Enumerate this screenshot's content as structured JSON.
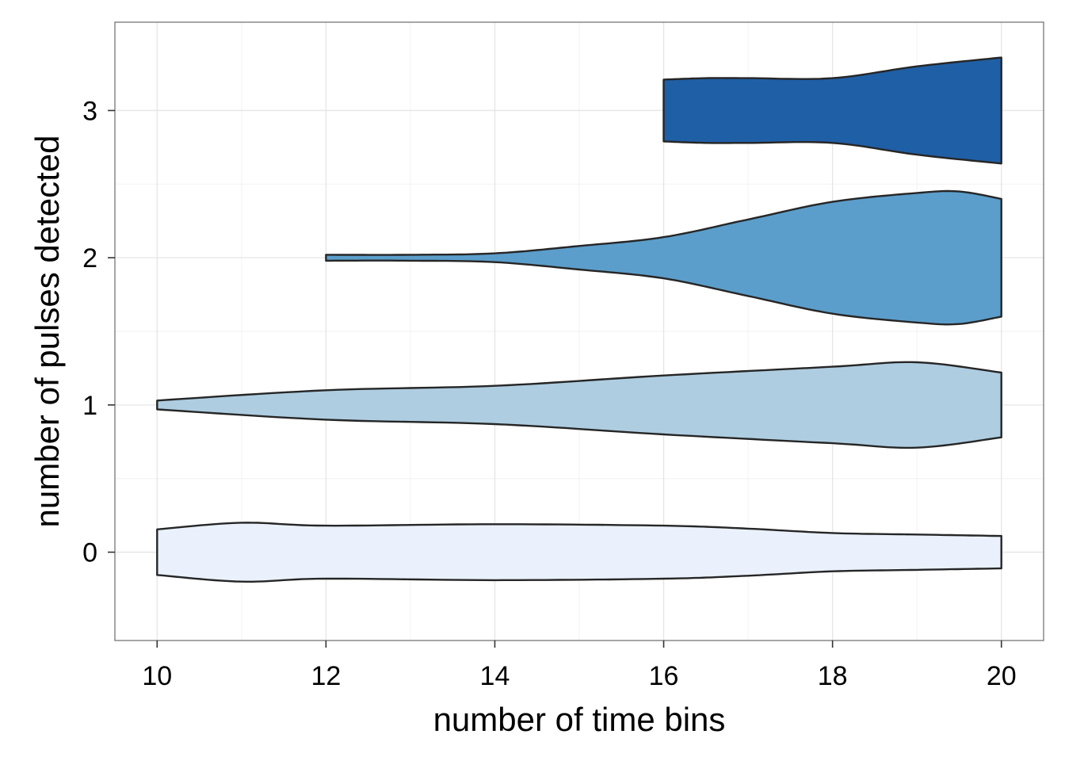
{
  "chart_data": {
    "type": "violin",
    "orientation": "horizontal",
    "xlabel": "number of time bins",
    "ylabel": "number of pulses detected",
    "xlim": [
      9.5,
      20.5
    ],
    "ylim": [
      -0.6,
      3.6
    ],
    "x_ticks": [
      "10",
      "12",
      "14",
      "16",
      "18",
      "20"
    ],
    "y_ticks": [
      "0",
      "1",
      "2",
      "3"
    ],
    "grid": true,
    "series": [
      {
        "category": 0,
        "fill": "#eaf1fc",
        "profile": [
          [
            10,
            0.155
          ],
          [
            11,
            0.2
          ],
          [
            12,
            0.18
          ],
          [
            14,
            0.19
          ],
          [
            16,
            0.18
          ],
          [
            17,
            0.16
          ],
          [
            18,
            0.13
          ],
          [
            19,
            0.12
          ],
          [
            20,
            0.11
          ]
        ]
      },
      {
        "category": 1,
        "fill": "#aecde1",
        "profile": [
          [
            10,
            0.03
          ],
          [
            12,
            0.1
          ],
          [
            14,
            0.13
          ],
          [
            16,
            0.2
          ],
          [
            18,
            0.26
          ],
          [
            19,
            0.29
          ],
          [
            20,
            0.22
          ]
        ]
      },
      {
        "category": 2,
        "fill": "#5b9ecb",
        "profile": [
          [
            12,
            0.02
          ],
          [
            13,
            0.02
          ],
          [
            14,
            0.03
          ],
          [
            15,
            0.08
          ],
          [
            16,
            0.14
          ],
          [
            17,
            0.26
          ],
          [
            18,
            0.38
          ],
          [
            19,
            0.44
          ],
          [
            19.5,
            0.45
          ],
          [
            20,
            0.4
          ]
        ]
      },
      {
        "category": 3,
        "fill": "#1f5fa6",
        "profile": [
          [
            16,
            0.21
          ],
          [
            16.5,
            0.22
          ],
          [
            17,
            0.22
          ],
          [
            18,
            0.22
          ],
          [
            19,
            0.3
          ],
          [
            20,
            0.36
          ]
        ]
      }
    ]
  }
}
